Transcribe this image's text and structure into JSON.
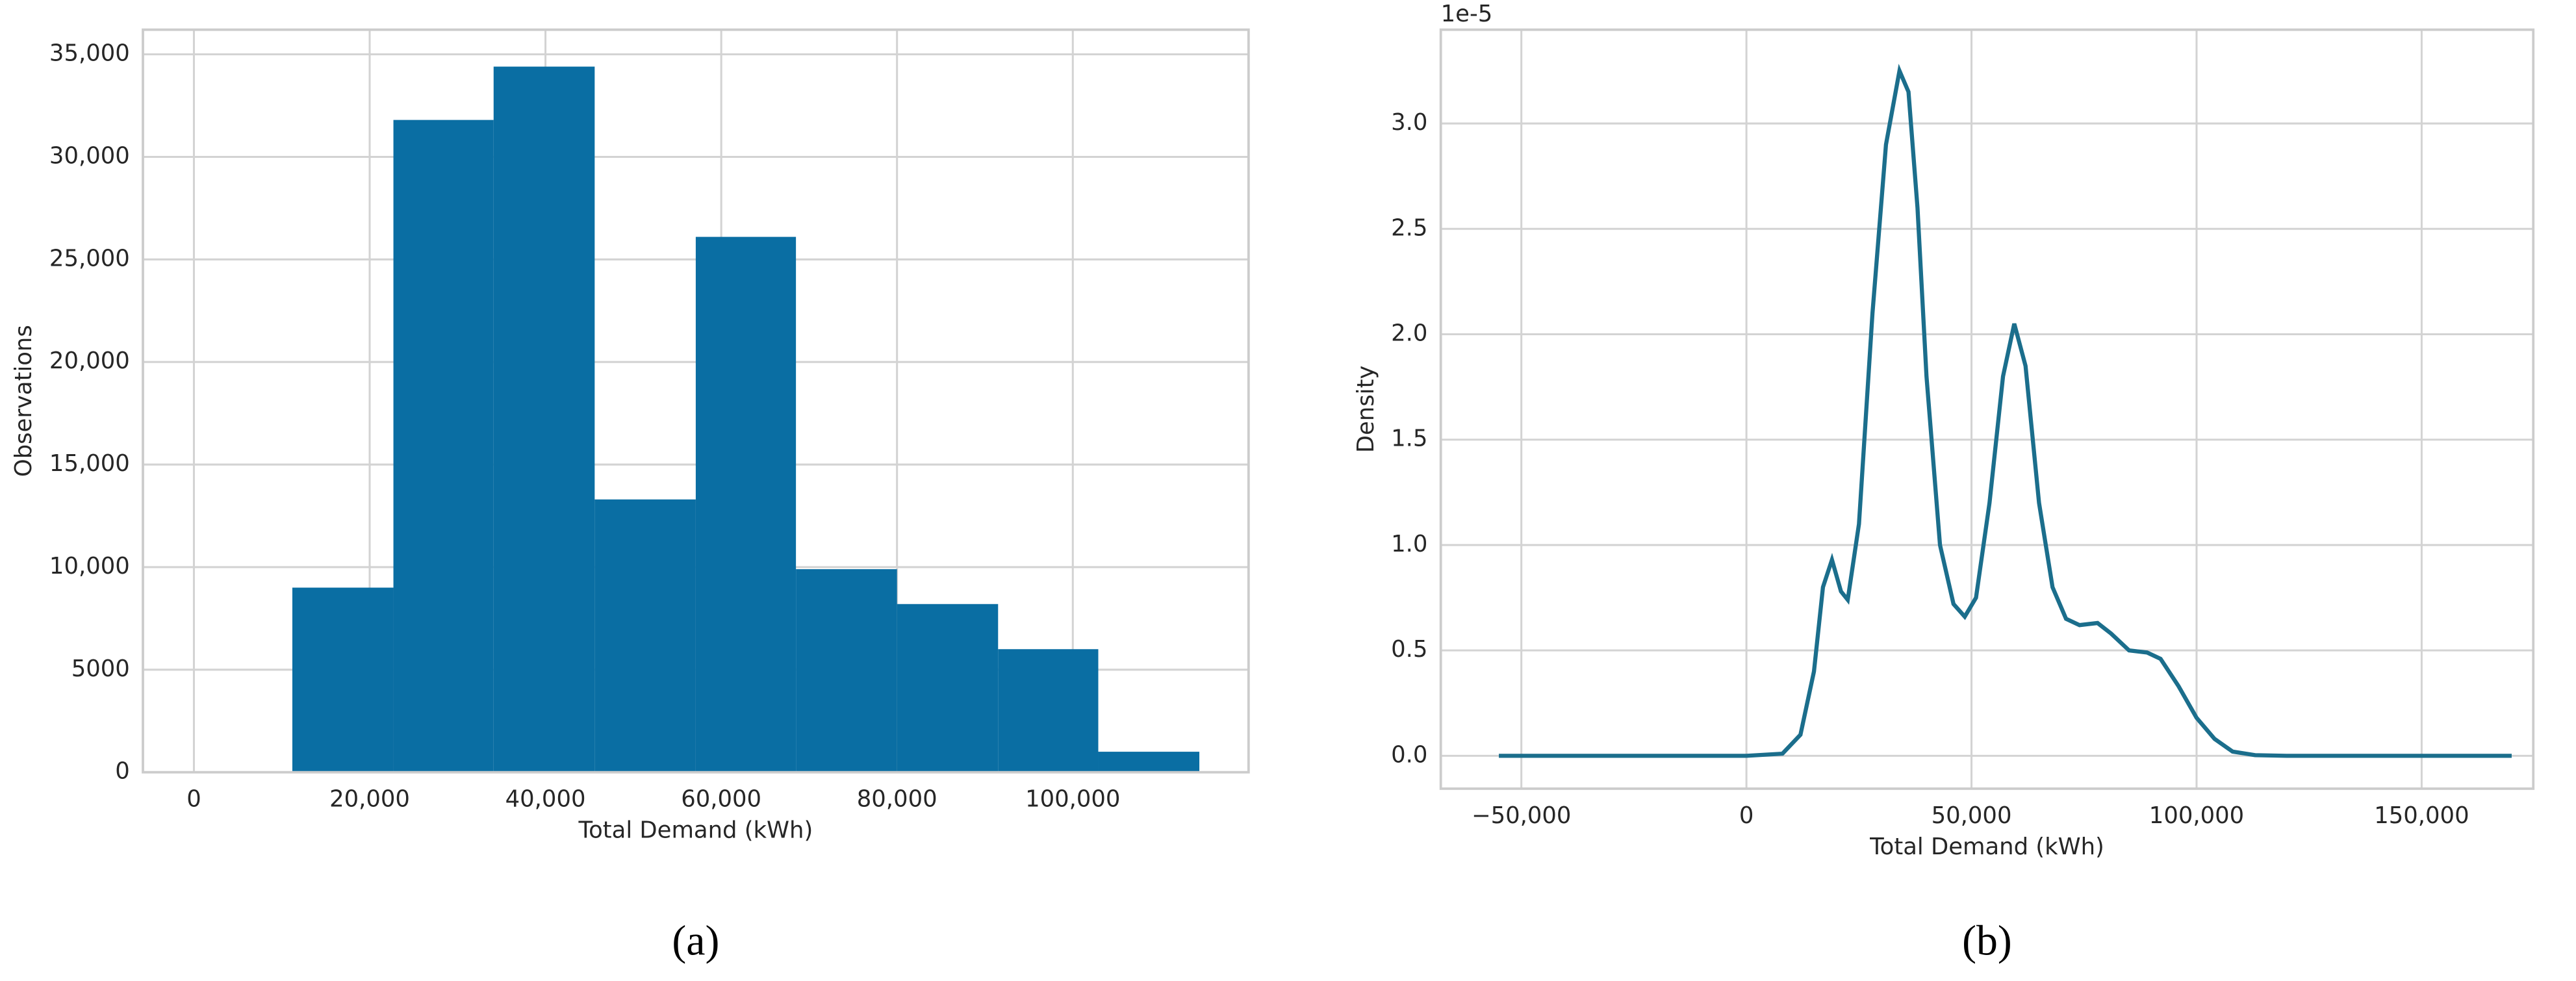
{
  "chart_data": [
    {
      "type": "histogram",
      "caption": "(a)",
      "x_label": "Total Demand (kWh)",
      "y_label": "Observations",
      "bins": [
        11200,
        22700,
        34100,
        45600,
        57100,
        68500,
        80000,
        91500,
        102900,
        114400
      ],
      "counts": [
        9000,
        31800,
        34400,
        13300,
        26100,
        9900,
        8200,
        6000,
        1000
      ],
      "color": "#0a6ea3",
      "grid": true,
      "xlim": [
        -5800,
        120000
      ],
      "xticks": [
        0,
        {
          "value": 20000,
          "label": "20,000"
        },
        {
          "value": 40000,
          "label": "40,000"
        },
        {
          "value": 60000,
          "label": "60,000"
        },
        {
          "value": 80000,
          "label": "80,000"
        },
        {
          "value": 100000,
          "label": "100,000"
        }
      ],
      "ylim": [
        0,
        36200
      ],
      "yticks": [
        0,
        5000,
        {
          "value": 10000,
          "label": "10,000"
        },
        {
          "value": 15000,
          "label": "15,000"
        },
        {
          "value": 20000,
          "label": "20,000"
        },
        {
          "value": 25000,
          "label": "25,000"
        },
        {
          "value": 30000,
          "label": "30,000"
        },
        {
          "value": 35000,
          "label": "35,000"
        }
      ]
    },
    {
      "type": "line",
      "caption": "(b)",
      "x_label": "Total Demand (kWh)",
      "y_label": "Density",
      "y_offset_label": "1e-5",
      "x": [
        -55000,
        0,
        8000,
        12000,
        15000,
        17000,
        19000,
        21000,
        22500,
        25000,
        28000,
        31000,
        34000,
        36000,
        38000,
        40000,
        43000,
        46000,
        48500,
        51000,
        54000,
        57000,
        59500,
        62000,
        65000,
        68000,
        71000,
        74000,
        78000,
        81000,
        85000,
        89000,
        92000,
        96000,
        100000,
        104000,
        108000,
        113000,
        120000,
        170000
      ],
      "values": [
        0,
        0,
        0.01,
        0.1,
        0.4,
        0.8,
        0.93,
        0.78,
        0.74,
        1.1,
        2.1,
        2.9,
        3.25,
        3.15,
        2.6,
        1.8,
        1.0,
        0.72,
        0.66,
        0.75,
        1.2,
        1.8,
        2.05,
        1.85,
        1.2,
        0.8,
        0.65,
        0.62,
        0.63,
        0.58,
        0.5,
        0.49,
        0.46,
        0.33,
        0.18,
        0.08,
        0.02,
        0.003,
        0,
        0
      ],
      "color": "#1b6e8c",
      "grid": true,
      "xlim": [
        -67900,
        174800
      ],
      "xticks": [
        {
          "value": -50000,
          "label": "−50,000"
        },
        0,
        {
          "value": 50000,
          "label": "50,000"
        },
        {
          "value": 100000,
          "label": "100,000"
        },
        {
          "value": 150000,
          "label": "150,000"
        }
      ],
      "ylim": [
        -0.156,
        3.445
      ],
      "yticks": [
        {
          "value": 0,
          "label": "0.0"
        },
        0.5,
        {
          "value": 1,
          "label": "1.0"
        },
        1.5,
        {
          "value": 2,
          "label": "2.0"
        },
        2.5,
        {
          "value": 3,
          "label": "3.0"
        }
      ]
    }
  ]
}
